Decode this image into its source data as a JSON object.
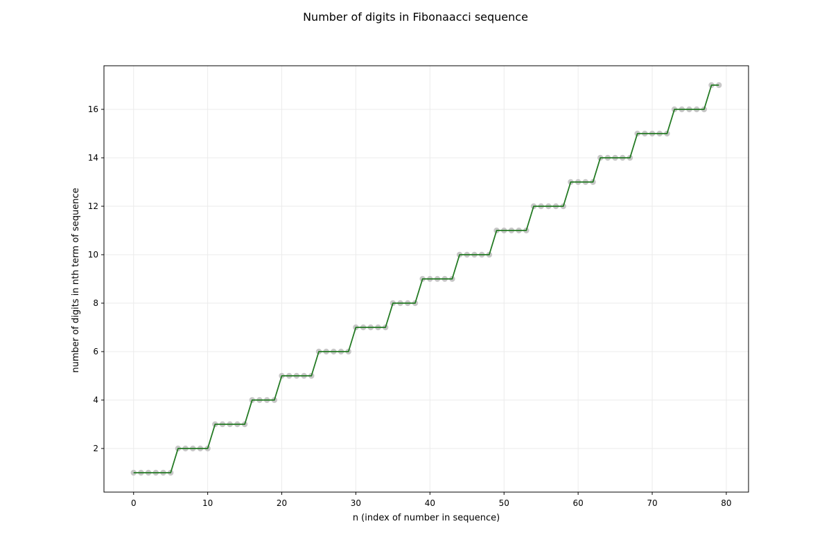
{
  "chart_data": {
    "type": "line",
    "title": "Number of digits in Fibonaacci sequence",
    "xlabel": "n (index of number in sequence)",
    "ylabel": "number of digits in nth term of sequence",
    "xlim": [
      -4,
      83
    ],
    "ylim": [
      0.2,
      17.8
    ],
    "xticks": [
      0,
      10,
      20,
      30,
      40,
      50,
      60,
      70,
      80
    ],
    "yticks": [
      2,
      4,
      6,
      8,
      10,
      12,
      14,
      16
    ],
    "grid": true,
    "x": [
      0,
      1,
      2,
      3,
      4,
      5,
      6,
      7,
      8,
      9,
      10,
      11,
      12,
      13,
      14,
      15,
      16,
      17,
      18,
      19,
      20,
      21,
      22,
      23,
      24,
      25,
      26,
      27,
      28,
      29,
      30,
      31,
      32,
      33,
      34,
      35,
      36,
      37,
      38,
      39,
      40,
      41,
      42,
      43,
      44,
      45,
      46,
      47,
      48,
      49,
      50,
      51,
      52,
      53,
      54,
      55,
      56,
      57,
      58,
      59,
      60,
      61,
      62,
      63,
      64,
      65,
      66,
      67,
      68,
      69,
      70,
      71,
      72,
      73,
      74,
      75,
      76,
      77,
      78,
      79
    ],
    "series": [
      {
        "values": [
          1,
          1,
          1,
          1,
          1,
          1,
          2,
          2,
          2,
          2,
          2,
          3,
          3,
          3,
          3,
          3,
          4,
          4,
          4,
          4,
          5,
          5,
          5,
          5,
          5,
          6,
          6,
          6,
          6,
          6,
          7,
          7,
          7,
          7,
          7,
          8,
          8,
          8,
          8,
          9,
          9,
          9,
          9,
          9,
          10,
          10,
          10,
          10,
          10,
          11,
          11,
          11,
          11,
          11,
          12,
          12,
          12,
          12,
          12,
          13,
          13,
          13,
          13,
          14,
          14,
          14,
          14,
          14,
          15,
          15,
          15,
          15,
          15,
          16,
          16,
          16,
          16,
          16,
          17,
          17
        ],
        "line_color": "#237a23",
        "marker_color": "#bdbdbd"
      }
    ]
  }
}
